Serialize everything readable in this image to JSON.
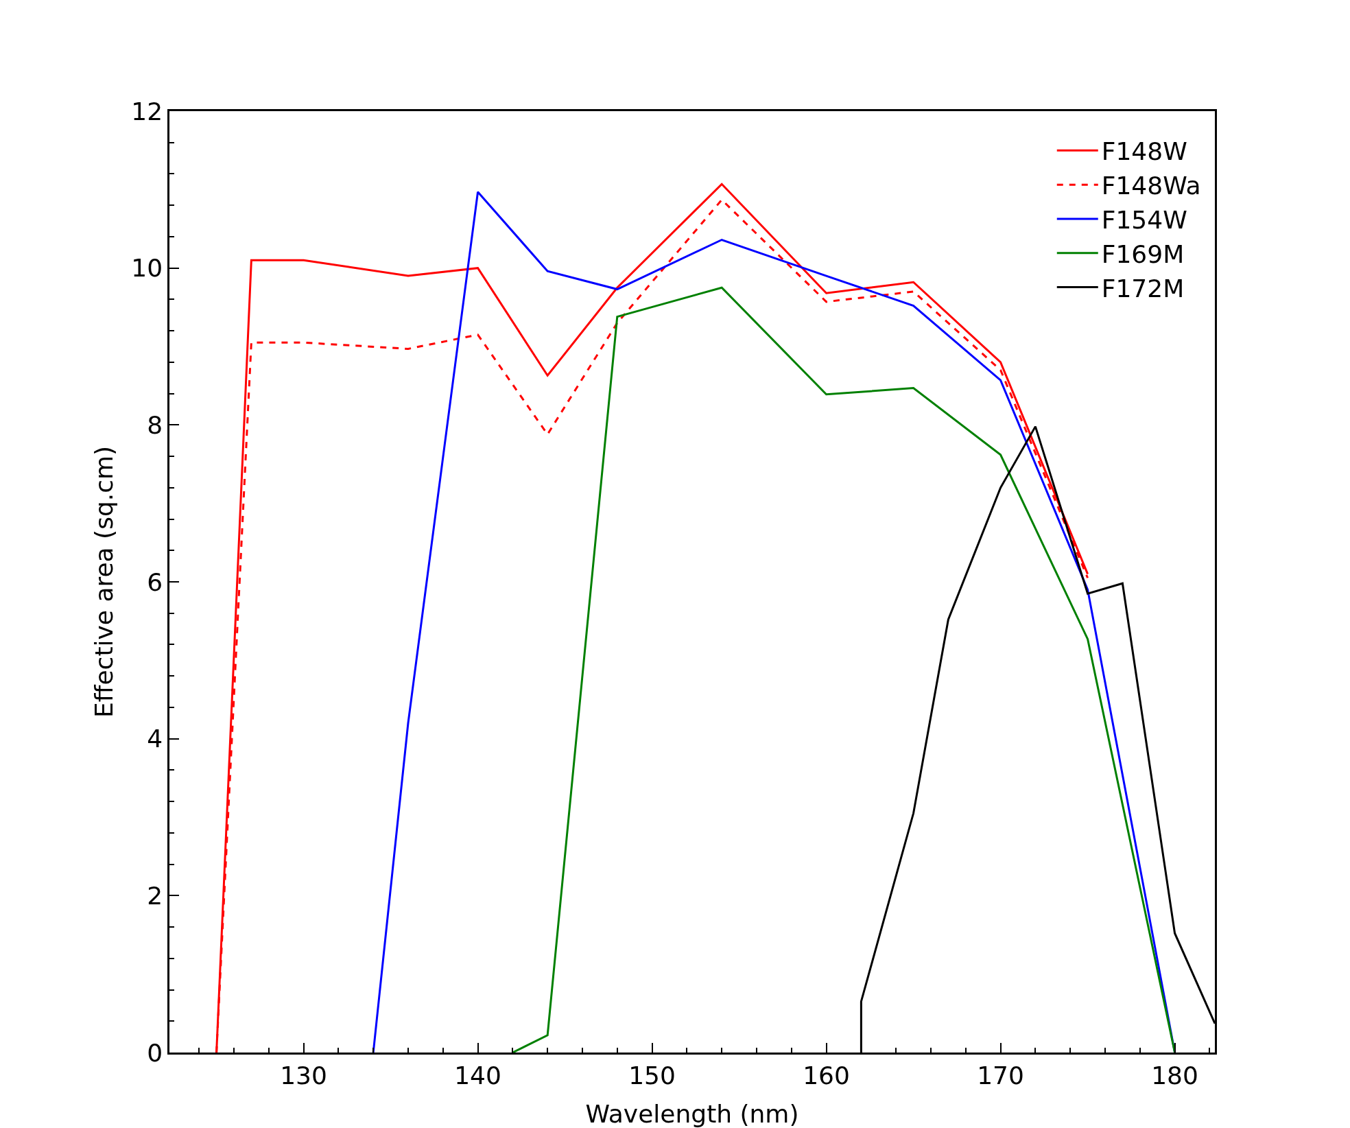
{
  "chart_data": {
    "type": "line",
    "xlabel": "Wavelength (nm)",
    "ylabel": "Effective area (sq.cm)",
    "xlim": [
      122.3,
      182.3
    ],
    "ylim": [
      0,
      12
    ],
    "xticks": [
      {
        "value": 124,
        "label": null
      },
      {
        "value": 126,
        "label": null
      },
      {
        "value": 128,
        "label": null
      },
      130,
      {
        "value": 132,
        "label": null
      },
      {
        "value": 134,
        "label": null
      },
      {
        "value": 136,
        "label": null
      },
      {
        "value": 138,
        "label": null
      },
      140,
      {
        "value": 142,
        "label": null
      },
      {
        "value": 144,
        "label": null
      },
      {
        "value": 146,
        "label": null
      },
      {
        "value": 148,
        "label": null
      },
      150,
      {
        "value": 152,
        "label": null
      },
      {
        "value": 154,
        "label": null
      },
      {
        "value": 156,
        "label": null
      },
      {
        "value": 158,
        "label": null
      },
      160,
      {
        "value": 162,
        "label": null
      },
      {
        "value": 164,
        "label": null
      },
      {
        "value": 166,
        "label": null
      },
      {
        "value": 168,
        "label": null
      },
      170,
      {
        "value": 172,
        "label": null
      },
      {
        "value": 174,
        "label": null
      },
      {
        "value": 176,
        "label": null
      },
      {
        "value": 178,
        "label": null
      },
      180,
      {
        "value": 182,
        "label": null
      }
    ],
    "yticks": [
      0,
      {
        "value": 0.4,
        "label": null
      },
      {
        "value": 0.8,
        "label": null
      },
      {
        "value": 1.2,
        "label": null
      },
      {
        "value": 1.6,
        "label": null
      },
      2,
      {
        "value": 2.4,
        "label": null
      },
      {
        "value": 2.8,
        "label": null
      },
      {
        "value": 3.2,
        "label": null
      },
      {
        "value": 3.6,
        "label": null
      },
      4,
      {
        "value": 4.4,
        "label": null
      },
      {
        "value": 4.8,
        "label": null
      },
      {
        "value": 5.2,
        "label": null
      },
      {
        "value": 5.6,
        "label": null
      },
      6,
      {
        "value": 6.4,
        "label": null
      },
      {
        "value": 6.8,
        "label": null
      },
      {
        "value": 7.2,
        "label": null
      },
      {
        "value": 7.6,
        "label": null
      },
      8,
      {
        "value": 8.4,
        "label": null
      },
      {
        "value": 8.8,
        "label": null
      },
      {
        "value": 9.2,
        "label": null
      },
      {
        "value": 9.6,
        "label": null
      },
      10,
      {
        "value": 10.4,
        "label": null
      },
      {
        "value": 10.8,
        "label": null
      },
      {
        "value": 11.2,
        "label": null
      },
      {
        "value": 11.6,
        "label": null
      },
      12
    ],
    "grid": false,
    "legend": "top right",
    "marker": "none",
    "series": [
      {
        "name": "F148W",
        "color": "#ff0000",
        "line_style": "solid",
        "x": [
          125,
          127,
          130,
          136,
          140,
          144,
          148,
          154,
          160,
          165,
          170,
          175
        ],
        "values": [
          0,
          10.1,
          10.1,
          9.9,
          10.0,
          8.63,
          9.75,
          11.07,
          9.68,
          9.82,
          8.8,
          6.1
        ]
      },
      {
        "name": "F148Wa",
        "color": "#ff0000",
        "line_style": "dashed",
        "x": [
          125,
          127,
          130,
          136,
          140,
          144,
          148,
          154,
          160,
          165,
          170,
          175
        ],
        "values": [
          0,
          9.05,
          9.05,
          8.97,
          9.15,
          7.88,
          9.3,
          10.87,
          9.57,
          9.7,
          8.7,
          6.05
        ]
      },
      {
        "name": "F154W",
        "color": "#0000ff",
        "line_style": "solid",
        "x": [
          134,
          136,
          140,
          144,
          148,
          154,
          160,
          165,
          170,
          175,
          180
        ],
        "values": [
          0,
          4.2,
          10.97,
          9.96,
          9.73,
          10.36,
          9.9,
          9.52,
          8.57,
          5.9,
          0
        ]
      },
      {
        "name": "F169M",
        "color": "#008000",
        "line_style": "solid",
        "x": [
          142,
          144,
          148,
          154,
          160,
          165,
          170,
          175,
          180
        ],
        "values": [
          0,
          0.22,
          9.38,
          9.75,
          8.39,
          8.47,
          7.62,
          5.27,
          0
        ]
      },
      {
        "name": "F172M",
        "color": "#000000",
        "line_style": "solid",
        "x": [
          162,
          162,
          165,
          167,
          170,
          172,
          175,
          177,
          180,
          182.3
        ],
        "values": [
          0,
          0.65,
          3.05,
          5.52,
          7.2,
          7.98,
          5.85,
          5.98,
          1.52,
          0.37
        ]
      }
    ]
  }
}
